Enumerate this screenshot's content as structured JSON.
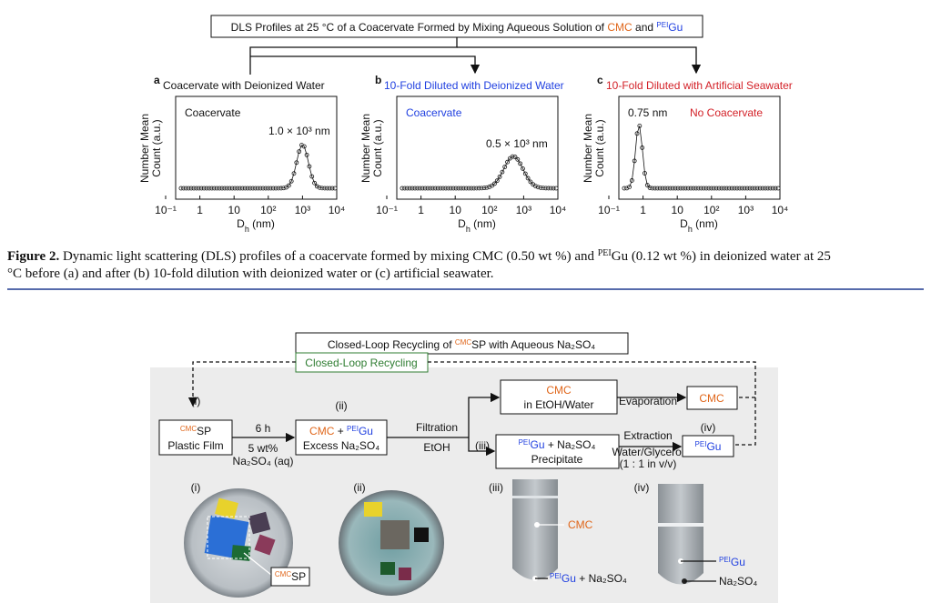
{
  "fig1": {
    "banner": [
      "DLS Profiles at 25 °C of a Coacervate Formed by Mixing Aqueous Solution of ",
      "CMC",
      " and ",
      "PEI",
      "Gu"
    ],
    "panels": [
      {
        "letter": "a",
        "title": "Coacervate with Deionized Water",
        "inner": "Coacervate",
        "peak": "1.0 × 10³ nm"
      },
      {
        "letter": "b",
        "title": "10-Fold Diluted with Deionized Water",
        "inner": "Coacervate",
        "peak": "0.5 × 10³ nm"
      },
      {
        "letter": "c",
        "title": "10-Fold Diluted with Artificial Seawater",
        "inner": "No Coacervate",
        "peak": "0.75 nm"
      }
    ],
    "ylabel": [
      "Number Mean",
      "Count (a.u.)"
    ],
    "xticks": [
      "10⁻¹",
      "1",
      "10",
      "10²",
      "10³",
      "10⁴"
    ],
    "xlabel": [
      "D",
      "h",
      " (nm)"
    ]
  },
  "caption": {
    "label": "Figure 2.",
    "line1": [
      " Dynamic light scattering (DLS) profiles of a coacervate formed by mixing CMC (0.50 wt %) and ",
      "PEI",
      "Gu (0.12 wt %) in deionized water at 25"
    ],
    "line2": "°C before (a) and after (b) 10-fold dilution with deionized water or (c) artificial seawater."
  },
  "fig2": {
    "banner": [
      "Closed-Loop Recycling of ",
      "CMC",
      "SP with Aqueous Na₂SO₄"
    ],
    "loop": "Closed-Loop Recycling",
    "step_i": {
      "tag": "(i)",
      "line1": [
        "CMC",
        "SP"
      ],
      "line2": "Plastic Film"
    },
    "arrow1": {
      "top": "6 h",
      "bottom1": "5 wt%",
      "bottom2": "Na₂SO₄ (aq)"
    },
    "step_ii": {
      "tag": "(ii)",
      "line1": [
        "CMC",
        " + ",
        "PEI",
        "Gu"
      ],
      "line2": "Excess Na₂SO₄"
    },
    "arrow2": {
      "top": "Filtration",
      "bottom": "EtOH",
      "tag": "(iii)"
    },
    "top_box": {
      "line1": "CMC",
      "line2": "in EtOH/Water"
    },
    "bottom_box": {
      "line1": [
        "PEI",
        "Gu",
        " + Na₂SO₄"
      ],
      "line2": "Precipitate"
    },
    "evaporation": "Evaporation",
    "cmc_box": "CMC",
    "extraction": {
      "top": "Extraction",
      "bottom1": "Water/Glycerol",
      "bottom2": "(1 : 1 in v/v)",
      "tag": "(iv)"
    },
    "gu_box": [
      "PEI",
      "Gu"
    ],
    "photos": {
      "tags": [
        "(i)",
        "(ii)",
        "(iii)",
        "(iv)"
      ],
      "sp_label": [
        "CMC",
        "SP"
      ],
      "cmc": "CMC",
      "tube3_bottom": [
        "PEI",
        "Gu",
        " + Na₂SO₄"
      ],
      "tube4_gu": [
        "PEI",
        "Gu"
      ],
      "tube4_salt": "Na₂SO₄"
    }
  }
}
